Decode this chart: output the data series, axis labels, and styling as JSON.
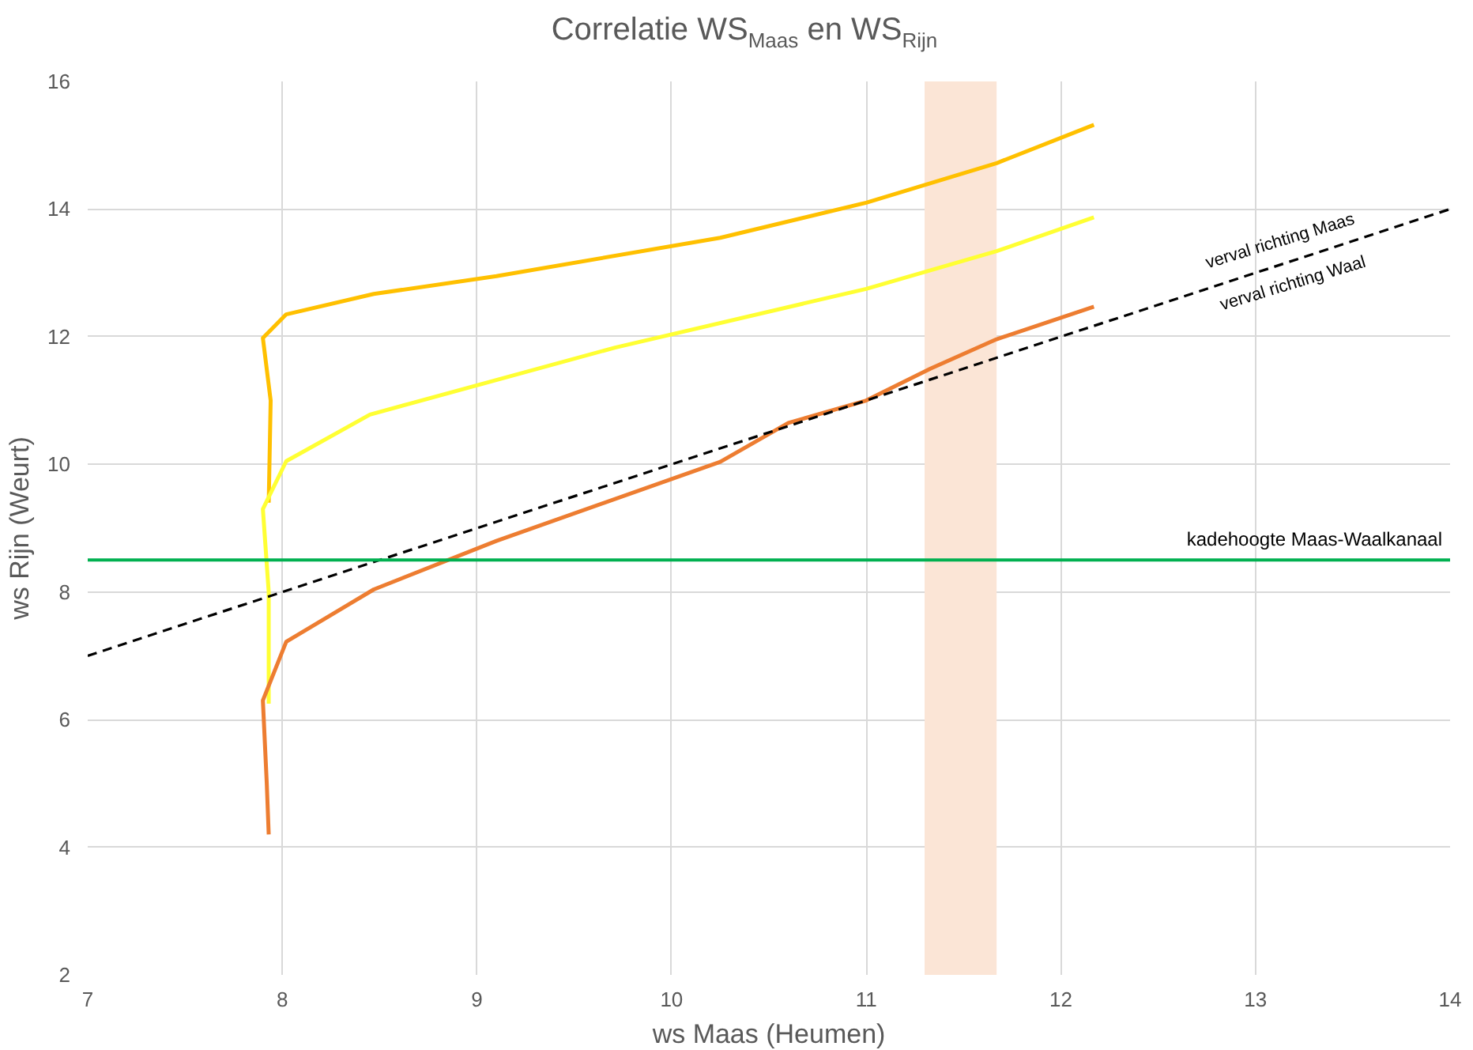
{
  "chart_data": {
    "type": "line",
    "title": "Correlatie WS$_{Maas}$ en WS$_{Rijn}$",
    "xlabel": "ws Maas (Heumen)",
    "ylabel": "ws Rijn (Weurt)",
    "xlim": [
      7,
      14
    ],
    "ylim": [
      2,
      16
    ],
    "xticks": [
      7,
      8,
      9,
      10,
      11,
      12,
      13,
      14
    ],
    "yticks": [
      2,
      4,
      6,
      8,
      10,
      12,
      14,
      16
    ],
    "grid": true,
    "series": [
      {
        "color": "#ffc000",
        "x": [
          7.93,
          7.94,
          7.9,
          8.02,
          8.47,
          9.1,
          10.25,
          11.0,
          11.67,
          12.17
        ],
        "values": [
          9.4,
          11.0,
          11.98,
          12.35,
          12.67,
          12.95,
          13.55,
          14.1,
          14.72,
          15.32
        ]
      },
      {
        "color": "#ffff33",
        "x": [
          7.93,
          7.93,
          7.9,
          8.02,
          8.45,
          9.71,
          11.0,
          11.67,
          12.17
        ],
        "values": [
          6.25,
          8.0,
          9.3,
          10.05,
          10.78,
          11.83,
          12.75,
          13.34,
          13.87
        ]
      },
      {
        "color": "#ed7d31",
        "x": [
          7.93,
          7.92,
          7.9,
          8.02,
          8.47,
          9.1,
          10.25,
          10.6,
          11.0,
          11.33,
          11.67,
          12.17
        ],
        "values": [
          4.2,
          5.0,
          6.3,
          7.22,
          8.04,
          8.8,
          10.04,
          10.65,
          11.0,
          11.5,
          11.96,
          12.47
        ]
      },
      {
        "color": "#000000",
        "line_style": "dashed",
        "x": [
          7,
          14
        ],
        "values": [
          7,
          14
        ]
      }
    ],
    "ref_lines": [
      {
        "axis": "y",
        "value": 8.5,
        "label": "kadehoogte Maas-Waalkanaal",
        "color": "#00b050"
      }
    ],
    "bands": [
      {
        "axis": "x",
        "from": 11.3,
        "to": 11.67,
        "color": "#fbe5d6"
      }
    ],
    "annotations": [
      "verval richting Maas",
      "verval richting Waal"
    ]
  }
}
